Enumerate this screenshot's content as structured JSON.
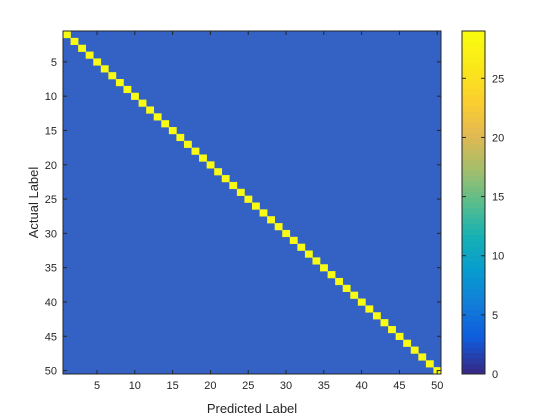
{
  "chart_data": {
    "type": "heatmap",
    "title": "",
    "xlabel": "Predicted Label",
    "ylabel": "Actual Label",
    "n_classes": 50,
    "x_range": [
      1,
      50
    ],
    "y_range": [
      1,
      50
    ],
    "y_direction": "reversed",
    "x_ticks": [
      5,
      10,
      15,
      20,
      25,
      30,
      35,
      40,
      45,
      50
    ],
    "y_ticks": [
      5,
      10,
      15,
      20,
      25,
      30,
      35,
      40,
      45,
      50
    ],
    "matrix_description": "confusion matrix: diagonal cells equal max value, off-diagonal cells equal 0",
    "diagonal_value": 29,
    "off_diagonal_value": 0,
    "color_range": [
      0,
      29
    ],
    "colorbar": {
      "position": "right",
      "ticks": [
        0,
        5,
        10,
        15,
        20,
        25
      ]
    },
    "colormap": "parula",
    "colors": {
      "low": "#3361c4",
      "high": "#f9fb15"
    },
    "grid": false
  }
}
